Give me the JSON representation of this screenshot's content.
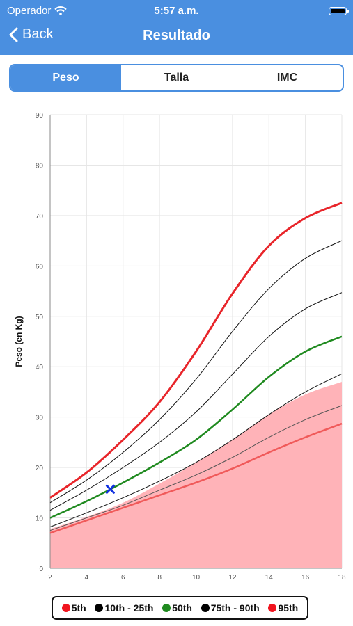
{
  "status_bar": {
    "carrier": "Operador",
    "time": "5:57 a.m."
  },
  "nav": {
    "back_label": "Back",
    "title": "Resultado"
  },
  "tabs": [
    {
      "label": "Peso",
      "active": true
    },
    {
      "label": "Talla",
      "active": false
    },
    {
      "label": "IMC",
      "active": false
    }
  ],
  "colors": {
    "header": "#4a8fe0",
    "p5": "#f05a5a",
    "p95": "#e8252a",
    "p50": "#1f8a1f",
    "band": "#ffb3b8",
    "marker": "#1030e0"
  },
  "chart_data": {
    "type": "line",
    "ylabel": "Peso (en Kg)",
    "xlabel": "",
    "xlim": [
      2,
      18
    ],
    "ylim": [
      0,
      90
    ],
    "xticks": [
      2,
      4,
      6,
      8,
      10,
      12,
      14,
      16,
      18
    ],
    "yticks": [
      0,
      10,
      20,
      30,
      40,
      50,
      60,
      70,
      80,
      90
    ],
    "grid": true,
    "x": [
      2,
      4,
      6,
      8,
      10,
      12,
      14,
      16,
      18
    ],
    "band": {
      "color": "#ffb3b8",
      "upper": [
        7.8,
        10.2,
        13.0,
        16.8,
        21.0,
        25.5,
        30.5,
        34.5,
        37.0
      ]
    },
    "series": [
      {
        "key": "p5",
        "color": "#f05a5a",
        "width": 2.5,
        "values": [
          7.0,
          9.5,
          12.0,
          14.5,
          17.0,
          19.8,
          23.0,
          26.0,
          28.7
        ]
      },
      {
        "key": "p10",
        "color": "#555555",
        "width": 1,
        "values": [
          7.5,
          10.0,
          12.5,
          15.5,
          18.5,
          22.0,
          26.0,
          29.5,
          32.3
        ]
      },
      {
        "key": "p25",
        "color": "#111111",
        "width": 1,
        "values": [
          8.2,
          11.0,
          14.0,
          17.3,
          21.0,
          25.5,
          30.5,
          35.0,
          38.6
        ]
      },
      {
        "key": "p50",
        "color": "#1f8a1f",
        "width": 2.5,
        "values": [
          10.0,
          13.3,
          17.0,
          21.0,
          25.5,
          31.5,
          38.0,
          43.0,
          46.0
        ]
      },
      {
        "key": "p75",
        "color": "#111111",
        "width": 1,
        "values": [
          11.5,
          15.5,
          20.0,
          25.0,
          31.0,
          38.5,
          46.0,
          51.5,
          54.7
        ]
      },
      {
        "key": "p90",
        "color": "#111111",
        "width": 1,
        "values": [
          13.0,
          17.5,
          23.0,
          29.5,
          37.5,
          47.0,
          55.5,
          61.5,
          65.0
        ]
      },
      {
        "key": "p95",
        "color": "#e8252a",
        "width": 3,
        "values": [
          14.0,
          19.0,
          25.5,
          33.0,
          43.0,
          54.5,
          64.0,
          69.5,
          72.5
        ]
      }
    ],
    "marker": {
      "x": 5.3,
      "y": 15.7,
      "color": "#1030e0",
      "symbol": "x"
    },
    "legend": [
      {
        "label": "5th",
        "color": "#f0141e"
      },
      {
        "label": "10th - 25th",
        "color": "#000000"
      },
      {
        "label": "50th",
        "color": "#1f8a1f"
      },
      {
        "label": "75th - 90th",
        "color": "#000000"
      },
      {
        "label": "95th",
        "color": "#f0141e"
      }
    ]
  }
}
